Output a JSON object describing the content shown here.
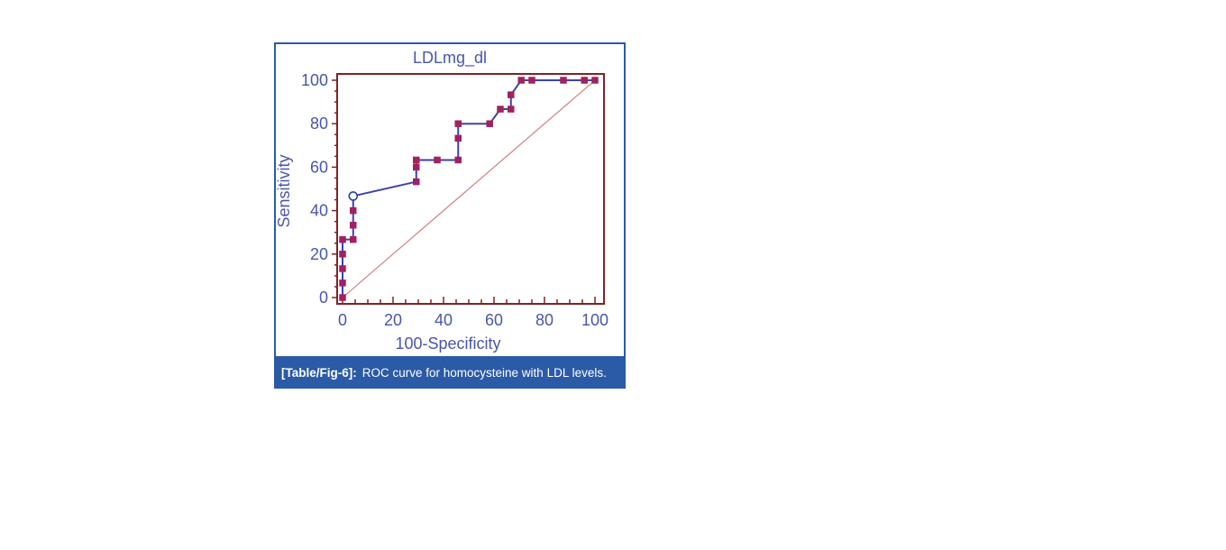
{
  "figure": {
    "border_color": "#2b5aa6",
    "background": "#ffffff"
  },
  "caption": {
    "label": "[Table/Fig-6]:",
    "text": "ROC curve for homocysteine with LDL levels.",
    "background": "#2b5aa6",
    "text_color": "#ffffff"
  },
  "chart_data": {
    "type": "line",
    "subtype": "roc-curve",
    "title": "LDLmg_dl",
    "xlabel": "100-Specificity",
    "ylabel": "Sensitivity",
    "xlim": [
      0,
      100
    ],
    "ylim": [
      0,
      100
    ],
    "x_ticks": [
      0,
      20,
      40,
      60,
      80,
      100
    ],
    "y_ticks": [
      0,
      20,
      40,
      60,
      80,
      100
    ],
    "minor_tick_step": 5,
    "grid": false,
    "legend": false,
    "frame_color": "#7f2226",
    "label_color": "#4956ab",
    "series": [
      {
        "name": "ROC curve",
        "color": "#3a43ae",
        "marker": "square",
        "marker_color": "#a2215f",
        "points": [
          [
            0,
            0
          ],
          [
            0,
            6.7
          ],
          [
            0,
            13.3
          ],
          [
            0,
            20
          ],
          [
            0,
            26.7
          ],
          [
            4.2,
            26.7
          ],
          [
            4.2,
            33.3
          ],
          [
            4.2,
            40
          ],
          [
            4.2,
            46.7
          ],
          [
            29.2,
            53.3
          ],
          [
            29.2,
            60
          ],
          [
            29.2,
            63.3
          ],
          [
            37.5,
            63.3
          ],
          [
            45.8,
            63.3
          ],
          [
            45.8,
            73.3
          ],
          [
            45.8,
            80
          ],
          [
            58.3,
            80
          ],
          [
            62.5,
            86.7
          ],
          [
            66.7,
            86.7
          ],
          [
            66.7,
            93.3
          ],
          [
            70.8,
            100
          ],
          [
            75,
            100
          ],
          [
            87.5,
            100
          ],
          [
            95.8,
            100
          ],
          [
            100,
            100
          ]
        ]
      }
    ],
    "operating_point": {
      "x": 4.2,
      "y": 46.7,
      "marker": "open-circle",
      "stroke": "#2a3f92",
      "fill": "#ffffff"
    },
    "reference_line": {
      "from": [
        0,
        0
      ],
      "to": [
        100,
        100
      ],
      "color": "#cf8080",
      "style": "solid"
    }
  }
}
